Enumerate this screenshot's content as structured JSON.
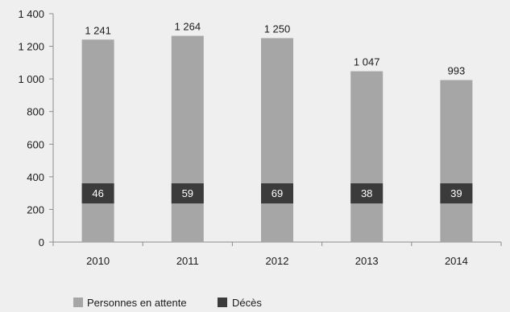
{
  "colors": {
    "background": "#efefef",
    "waiting_bar": "#a6a6a6",
    "deaths_box": "#3b3b3b",
    "deaths_text": "#ffffff",
    "axis": "#8c8c8c",
    "text": "#1a1a1a"
  },
  "chart_data": {
    "type": "bar",
    "title": "",
    "xlabel": "",
    "ylabel": "",
    "categories": [
      "2010",
      "2011",
      "2012",
      "2013",
      "2014"
    ],
    "ylim": [
      0,
      1400
    ],
    "yticks": [
      0,
      200,
      400,
      600,
      800,
      1000,
      1200,
      1400
    ],
    "ytick_labels": [
      "0",
      "200",
      "400",
      "600",
      "800",
      "1 000",
      "1 200",
      "1 400"
    ],
    "grid": false,
    "legend_position": "bottom-left",
    "series": [
      {
        "name": "Personnes en attente",
        "values": [
          1241,
          1264,
          1250,
          1047,
          993
        ],
        "labels": [
          "1 241",
          "1 264",
          "1 250",
          "1 047",
          "993"
        ],
        "color": "#a6a6a6"
      },
      {
        "name": "Décès",
        "values": [
          46,
          59,
          69,
          38,
          39
        ],
        "labels": [
          "46",
          "59",
          "69",
          "38",
          "39"
        ],
        "color": "#3b3b3b"
      }
    ]
  }
}
